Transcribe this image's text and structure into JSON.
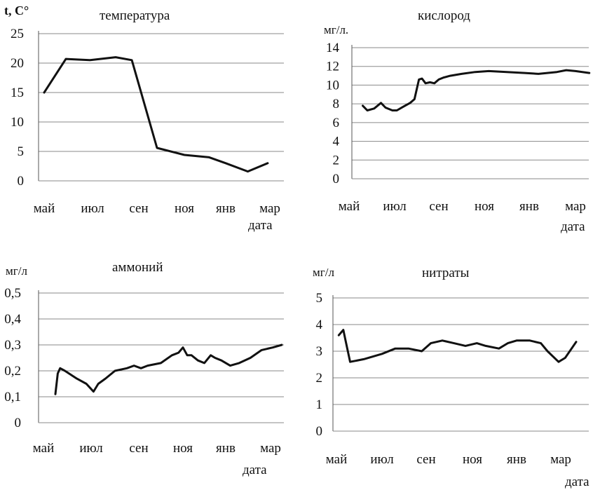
{
  "colors": {
    "line": "#111111",
    "grid": "#8a8a8a",
    "background": "#ffffff"
  },
  "chart_data": [
    {
      "id": "temp",
      "type": "line",
      "title": "температура",
      "ylabel": "t, C°",
      "xlabel": "дата",
      "ylim": [
        0,
        25
      ],
      "ytick_step": 5,
      "yticks": [
        "0",
        "5",
        "10",
        "15",
        "20",
        "25"
      ],
      "categories": [
        "май",
        "июл",
        "сен",
        "ноя",
        "янв",
        "мар"
      ],
      "grid": true,
      "series": [
        {
          "x": [
            0,
            0.45,
            0.95,
            1.5,
            1.85,
            2.4,
            3.0,
            3.6,
            4.0,
            4.5,
            4.95
          ],
          "y": [
            15,
            20.7,
            20.5,
            21,
            20.5,
            5.6,
            4.4,
            4,
            3,
            1.6,
            3
          ]
        }
      ]
    },
    {
      "id": "oxy",
      "type": "line",
      "title": "кислород",
      "ylabel": "мг/л.",
      "xlabel": "дата",
      "ylim": [
        0,
        14
      ],
      "ytick_step": 2,
      "yticks": [
        "0",
        "2",
        "4",
        "6",
        "8",
        "10",
        "12",
        "14"
      ],
      "categories": [
        "май",
        "июл",
        "сен",
        "ноя",
        "янв",
        "мар"
      ],
      "grid": true,
      "series": [
        {
          "x": [
            0.3,
            0.4,
            0.55,
            0.7,
            0.8,
            0.95,
            1.05,
            1.2,
            1.35,
            1.45,
            1.55,
            1.62,
            1.7,
            1.8,
            1.9,
            2.0,
            2.1,
            2.25,
            2.5,
            2.8,
            3.1,
            3.5,
            3.9,
            4.2,
            4.6,
            4.8,
            5.0,
            5.3
          ],
          "y": [
            7.8,
            7.3,
            7.5,
            8.1,
            7.6,
            7.3,
            7.3,
            7.7,
            8.1,
            8.5,
            10.6,
            10.7,
            10.2,
            10.3,
            10.2,
            10.6,
            10.8,
            11.0,
            11.2,
            11.4,
            11.5,
            11.4,
            11.3,
            11.2,
            11.4,
            11.6,
            11.5,
            11.3
          ]
        }
      ]
    },
    {
      "id": "nh4",
      "type": "line",
      "title": "аммоний",
      "ylabel": "мг/л",
      "xlabel": "дата",
      "ylim": [
        0,
        0.5
      ],
      "ytick_step": 0.1,
      "yticks": [
        "0",
        "0.1",
        "0.2",
        "0.3",
        "0.4",
        "0.5"
      ],
      "categories": [
        "май",
        "июл",
        "сен",
        "ноя",
        "янв",
        "мар"
      ],
      "grid": true,
      "series": [
        {
          "x": [
            0.25,
            0.3,
            0.35,
            0.45,
            0.7,
            0.9,
            1.05,
            1.15,
            1.3,
            1.5,
            1.75,
            1.9,
            2.05,
            2.2,
            2.5,
            2.75,
            2.9,
            3.0,
            3.1,
            3.2,
            3.35,
            3.5,
            3.65,
            3.75,
            3.9,
            4.1,
            4.3,
            4.55,
            4.8,
            5.05,
            5.25
          ],
          "y": [
            0.11,
            0.19,
            0.21,
            0.2,
            0.17,
            0.15,
            0.12,
            0.15,
            0.17,
            0.2,
            0.21,
            0.22,
            0.21,
            0.22,
            0.23,
            0.26,
            0.27,
            0.29,
            0.26,
            0.26,
            0.24,
            0.23,
            0.26,
            0.25,
            0.24,
            0.22,
            0.23,
            0.25,
            0.28,
            0.29,
            0.3
          ]
        }
      ]
    },
    {
      "id": "no3",
      "type": "line",
      "title": "нитраты",
      "ylabel": "мг/л",
      "xlabel": "дата",
      "ylim": [
        0,
        5
      ],
      "ytick_step": 1,
      "yticks": [
        "0",
        "1",
        "2",
        "3",
        "4",
        "5"
      ],
      "categories": [
        "май",
        "июл",
        "сен",
        "ноя",
        "янв",
        "мар"
      ],
      "grid": true,
      "series": [
        {
          "x": [
            0.05,
            0.15,
            0.2,
            0.3,
            0.6,
            1.0,
            1.3,
            1.6,
            1.9,
            2.1,
            2.35,
            2.6,
            2.85,
            3.1,
            3.3,
            3.6,
            3.8,
            4.0,
            4.3,
            4.55,
            4.7,
            4.95,
            5.1,
            5.35
          ],
          "y": [
            3.6,
            3.8,
            3.4,
            2.6,
            2.7,
            2.9,
            3.1,
            3.1,
            3.0,
            3.3,
            3.4,
            3.3,
            3.2,
            3.3,
            3.2,
            3.1,
            3.3,
            3.4,
            3.4,
            3.3,
            3.0,
            2.6,
            2.75,
            3.35
          ]
        }
      ]
    }
  ]
}
